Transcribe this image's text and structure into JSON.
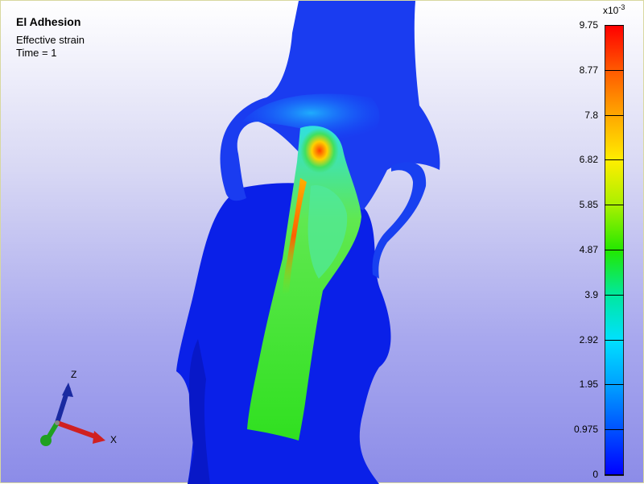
{
  "viewer": {
    "title": "El Adhesion",
    "field": "Effective strain",
    "time": "Time = 1"
  },
  "colorbar": {
    "scale_base": "x10",
    "scale_exponent": "-3",
    "ticks": [
      "9.75",
      "8.77",
      "7.8",
      "6.82",
      "5.85",
      "4.87",
      "3.9",
      "2.92",
      "1.95",
      "0.975",
      "0"
    ],
    "colors": [
      "#ff0000",
      "#ffa800",
      "#ffee00",
      "#22e800",
      "#00e0ff",
      "#0050ff",
      "#0000ff"
    ]
  },
  "axes": {
    "z_label": "Z",
    "x_label": "X",
    "colors": {
      "z": "#1a2aa0",
      "x": "#d02020",
      "y": "#20a020"
    }
  }
}
